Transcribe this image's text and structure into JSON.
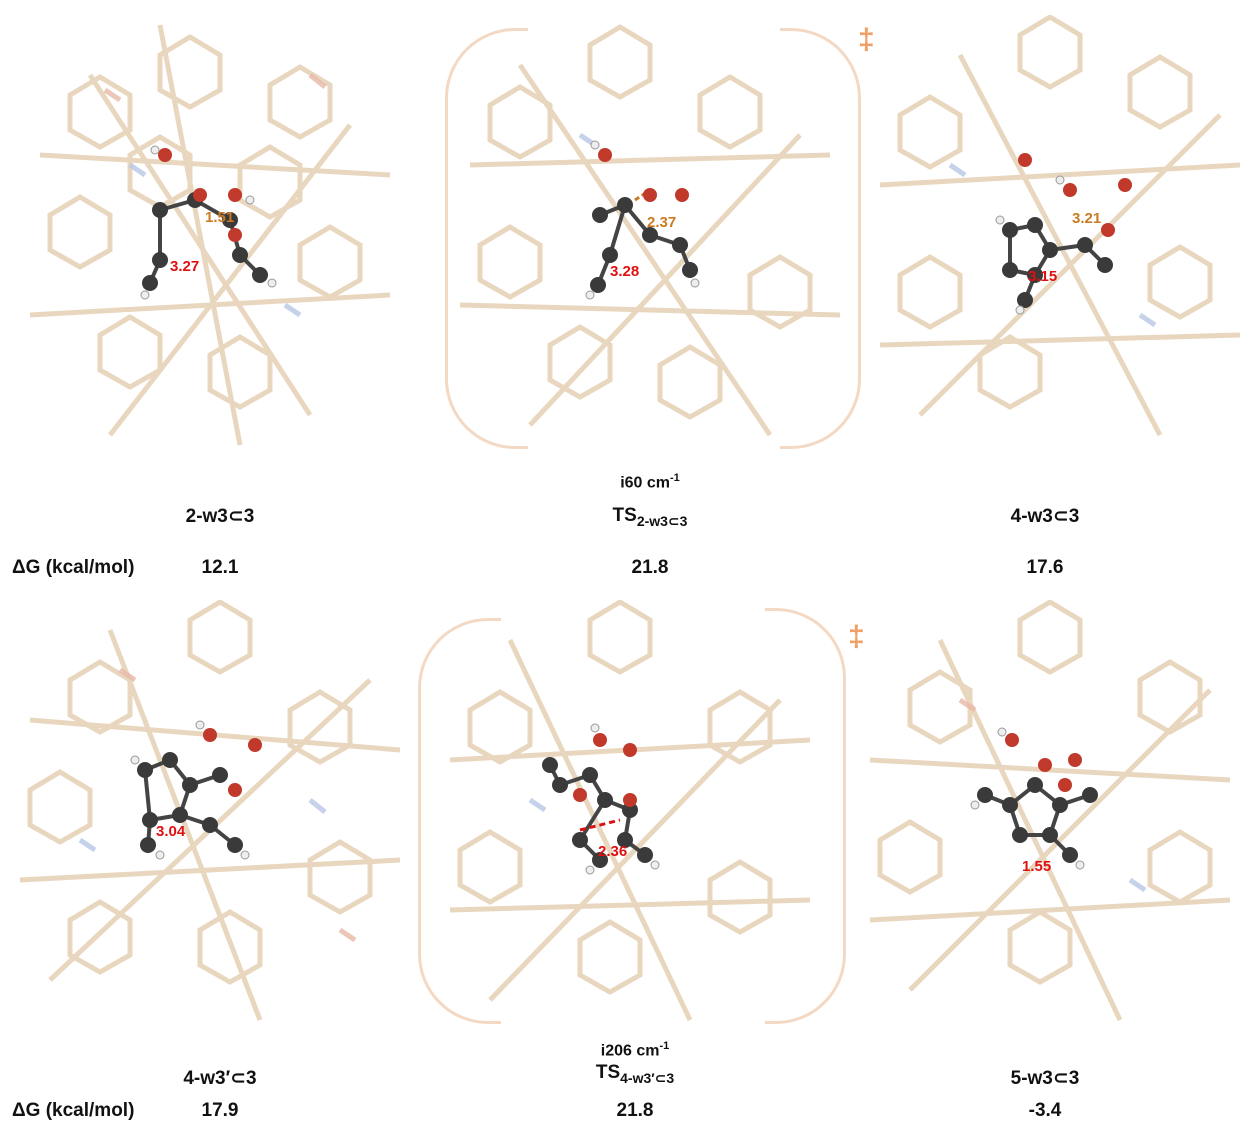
{
  "energy_label": "ΔG (kcal/mol)",
  "ts_marker": "‡",
  "structures": [
    {
      "name": "2-w3⊂3",
      "dG": "12.1",
      "distances": [
        "1.51",
        "3.27"
      ]
    },
    {
      "name_main": "TS",
      "name_sub": "2-w3⊂3",
      "freq": "i60 cm",
      "freq_sup": "-1",
      "dG": "21.8",
      "distances": [
        "2.37",
        "3.28"
      ]
    },
    {
      "name": "4-w3⊂3",
      "dG": "17.6",
      "distances": [
        "3.21",
        "3.15"
      ]
    },
    {
      "name": "4-w3′⊂3",
      "dG": "17.9",
      "distances": [
        "3.04"
      ]
    },
    {
      "name_main": "TS",
      "name_sub": "4-w3′⊂3",
      "freq": "i206 cm",
      "freq_sup": "-1",
      "dG": "21.8",
      "distances": [
        "2.36"
      ]
    },
    {
      "name": "5-w3⊂3",
      "dG": "-3.4",
      "distances": [
        "1.55"
      ]
    }
  ],
  "colors": {
    "cage": "#e6d3b8",
    "cage_n": "#b9c6e6",
    "cage_o": "#e8b8a8",
    "carbon": "#3a3a3a",
    "oxygen": "#c0392b",
    "hydrogen": "#f2f2f2",
    "label_orange": "#cc7a22",
    "label_red": "#e01010",
    "bracket": "#f3d9c4",
    "dagger": "#f0a066"
  }
}
